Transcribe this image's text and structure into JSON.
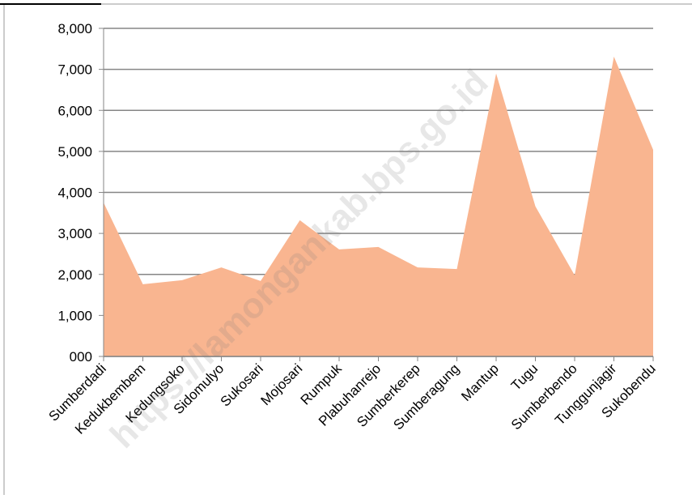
{
  "chart_data": {
    "type": "area",
    "categories": [
      "Sumberdadi",
      "Kedukbembem",
      "Kedungsoko",
      "Sidomulyo",
      "Sukosari",
      "Mojosari",
      "Rumpuk",
      "Plabuhanrejo",
      "Sumberkerep",
      "Sumberagung",
      "Mantup",
      "Tugu",
      "Sumberbendo",
      "Tunggunjagir",
      "Sukobendu"
    ],
    "values": [
      3750,
      1760,
      1860,
      2170,
      1840,
      3320,
      2610,
      2670,
      2170,
      2130,
      6900,
      3660,
      1980,
      7310,
      5040
    ],
    "color": "#f9b590",
    "ylim": [
      0,
      8000
    ],
    "yticks": [
      {
        "value": 0,
        "label": "000"
      },
      {
        "value": 1000,
        "label": "1,000"
      },
      {
        "value": 2000,
        "label": "2,000"
      },
      {
        "value": 3000,
        "label": "3,000"
      },
      {
        "value": 4000,
        "label": "4,000"
      },
      {
        "value": 5000,
        "label": "5,000"
      },
      {
        "value": 6000,
        "label": "6,000"
      },
      {
        "value": 7000,
        "label": "7,000"
      },
      {
        "value": 8000,
        "label": "8,000"
      }
    ],
    "grid": true,
    "watermark": "https://lamongankab.bps.go.id"
  }
}
